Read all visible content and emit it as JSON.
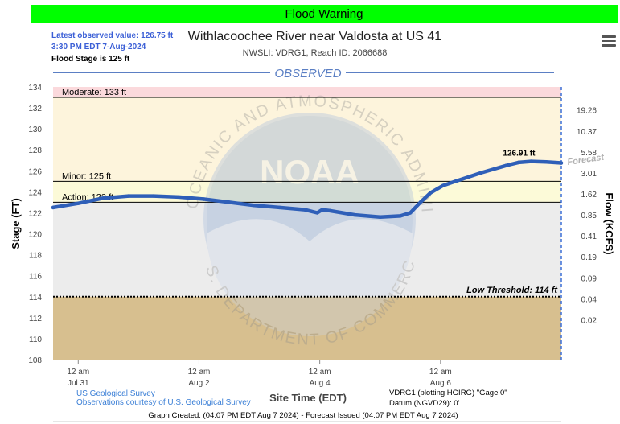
{
  "header": {
    "warning": "Flood Warning",
    "warning_color": "#00ff00",
    "latest_line1": "Latest observed value: 126.75 ft",
    "latest_line2": "3:30 PM EDT 7-Aug-2024",
    "flood_stage": "Flood Stage is 125 ft",
    "title": "Withlacoochee River near Valdosta at US 41",
    "subtitle": "NWSLI: VDRG1, Reach ID: 2066688",
    "menu_icon": "hamburger-menu-icon"
  },
  "footer": {
    "source1": "US Geological Survey",
    "source2": "Observations courtesy of U.S. Geological Survey",
    "gauge_line1": "VDRG1 (plotting HGIRG) \"Gage 0\"",
    "gauge_line2": "Datum (NGVD29): 0'",
    "created": "Graph Created: (04:07 PM EDT Aug 7 2024) - Forecast Issued (04:07 PM EDT Aug 7 2024)"
  },
  "chart_data": {
    "type": "line",
    "section_label": "OBSERVED",
    "forecast_label": "Forecast",
    "xlabel": "Site Time (EDT)",
    "ylabel": "Stage (FT)",
    "y2label": "Flow (KCFS)",
    "ylim": [
      108,
      134
    ],
    "x_range_hours": [
      -10,
      192
    ],
    "x_ticks": [
      {
        "h": 0,
        "l1": "12 am",
        "l2": "Jul 31"
      },
      {
        "h": 48,
        "l1": "12 am",
        "l2": "Aug 2"
      },
      {
        "h": 96,
        "l1": "12 am",
        "l2": "Aug 4"
      },
      {
        "h": 144,
        "l1": "12 am",
        "l2": "Aug 6"
      }
    ],
    "y_ticks": [
      108,
      110,
      112,
      114,
      116,
      118,
      120,
      122,
      124,
      126,
      128,
      130,
      132,
      134
    ],
    "flow_ticks": [
      {
        "stage": 131.8,
        "label": "19.26"
      },
      {
        "stage": 129.8,
        "label": "10.37"
      },
      {
        "stage": 127.8,
        "label": "5.58"
      },
      {
        "stage": 125.8,
        "label": "3.01"
      },
      {
        "stage": 123.8,
        "label": "1.62"
      },
      {
        "stage": 121.8,
        "label": "0.85"
      },
      {
        "stage": 119.8,
        "label": "0.41"
      },
      {
        "stage": 117.8,
        "label": "0.19"
      },
      {
        "stage": 115.8,
        "label": "0.09"
      },
      {
        "stage": 113.8,
        "label": "0.04"
      },
      {
        "stage": 111.8,
        "label": "0.02"
      }
    ],
    "thresholds": [
      {
        "name": "Moderate",
        "label": "Moderate: 133 ft",
        "value": 133,
        "color": "#000000"
      },
      {
        "name": "Minor",
        "label": "Minor: 125 ft",
        "value": 125,
        "color": "#000000"
      },
      {
        "name": "Action",
        "label": "Action: 123 ft",
        "value": 123,
        "color": "#000000"
      },
      {
        "name": "Low",
        "label": "Low Threshold: 114 ft",
        "value": 114,
        "color": "#000000"
      }
    ],
    "bands": [
      {
        "from": 133,
        "to": 134,
        "color": "#fbd9dc"
      },
      {
        "from": 125,
        "to": 133,
        "color": "#fdf4dc"
      },
      {
        "from": 123,
        "to": 125,
        "color": "#fcfad8"
      },
      {
        "from": 114,
        "to": 123,
        "color": "#ececec"
      },
      {
        "from": 108,
        "to": 114,
        "color": "#d7bf8f"
      }
    ],
    "peak_label": "126.91 ft",
    "series": [
      {
        "color": "#2f5fb8",
        "x": [
          -10,
          0,
          10,
          20,
          30,
          40,
          50,
          60,
          70,
          80,
          90,
          95,
          97,
          100,
          110,
          120,
          128,
          132,
          136,
          140,
          145,
          150,
          160,
          170,
          175,
          180,
          186,
          192
        ],
        "y": [
          122.5,
          122.9,
          123.4,
          123.6,
          123.6,
          123.5,
          123.3,
          123.0,
          122.7,
          122.5,
          122.3,
          122.0,
          122.3,
          122.2,
          121.8,
          121.6,
          121.7,
          122.0,
          123.0,
          123.9,
          124.6,
          125.0,
          125.8,
          126.5,
          126.8,
          126.9,
          126.85,
          126.75
        ]
      }
    ]
  }
}
